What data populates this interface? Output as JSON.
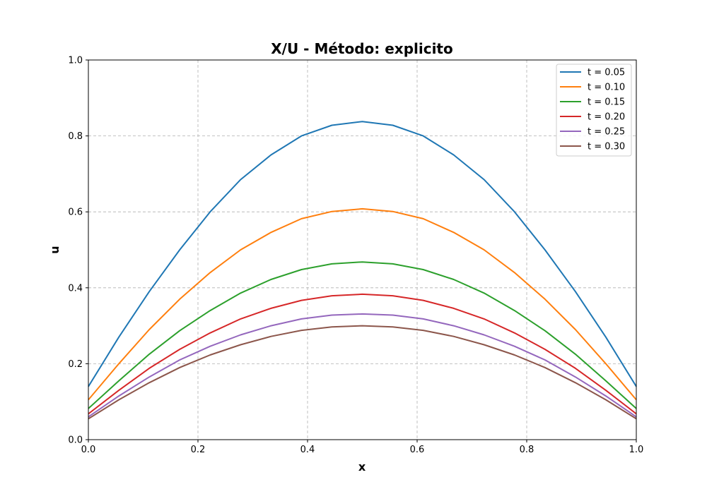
{
  "chart_data": {
    "type": "line",
    "title": "X/U - Método: explicito",
    "xlabel": "x",
    "ylabel": "u",
    "xlim": [
      0,
      1
    ],
    "ylim": [
      0,
      1
    ],
    "xticks": [
      "0.0",
      "0.2",
      "0.4",
      "0.6",
      "0.8",
      "1.0"
    ],
    "yticks": [
      "0.0",
      "0.2",
      "0.4",
      "0.6",
      "0.8",
      "1.0"
    ],
    "grid": true,
    "legend_position": "top-right",
    "x": [
      0,
      0.0556,
      0.1111,
      0.1667,
      0.2222,
      0.2778,
      0.3333,
      0.3889,
      0.4444,
      0.5,
      0.5556,
      0.6111,
      0.6667,
      0.7222,
      0.7778,
      0.8333,
      0.8889,
      0.9444,
      1.0
    ],
    "series": [
      {
        "name": "t = 0.05",
        "color": "#1f77b4",
        "values": [
          0.14,
          0.27,
          0.39,
          0.5,
          0.6,
          0.685,
          0.75,
          0.8,
          0.828,
          0.838,
          0.828,
          0.8,
          0.75,
          0.685,
          0.6,
          0.5,
          0.39,
          0.27,
          0.14
        ]
      },
      {
        "name": "t = 0.10",
        "color": "#ff7f0e",
        "values": [
          0.105,
          0.2,
          0.29,
          0.37,
          0.44,
          0.5,
          0.546,
          0.582,
          0.601,
          0.608,
          0.601,
          0.582,
          0.546,
          0.5,
          0.44,
          0.37,
          0.29,
          0.2,
          0.105
        ]
      },
      {
        "name": "t = 0.15",
        "color": "#2ca02c",
        "values": [
          0.082,
          0.155,
          0.225,
          0.287,
          0.34,
          0.386,
          0.422,
          0.448,
          0.463,
          0.468,
          0.463,
          0.448,
          0.422,
          0.386,
          0.34,
          0.287,
          0.225,
          0.155,
          0.082
        ]
      },
      {
        "name": "t = 0.20",
        "color": "#d62728",
        "values": [
          0.068,
          0.13,
          0.188,
          0.238,
          0.281,
          0.318,
          0.346,
          0.367,
          0.379,
          0.383,
          0.379,
          0.367,
          0.346,
          0.318,
          0.281,
          0.238,
          0.188,
          0.13,
          0.068
        ]
      },
      {
        "name": "t = 0.25",
        "color": "#9467bd",
        "values": [
          0.06,
          0.115,
          0.165,
          0.21,
          0.246,
          0.276,
          0.3,
          0.318,
          0.328,
          0.331,
          0.328,
          0.318,
          0.3,
          0.276,
          0.246,
          0.21,
          0.165,
          0.115,
          0.06
        ]
      },
      {
        "name": "t = 0.30",
        "color": "#8c564b",
        "values": [
          0.055,
          0.105,
          0.15,
          0.19,
          0.223,
          0.25,
          0.272,
          0.288,
          0.297,
          0.3,
          0.297,
          0.288,
          0.272,
          0.25,
          0.223,
          0.19,
          0.15,
          0.105,
          0.055
        ]
      }
    ]
  }
}
